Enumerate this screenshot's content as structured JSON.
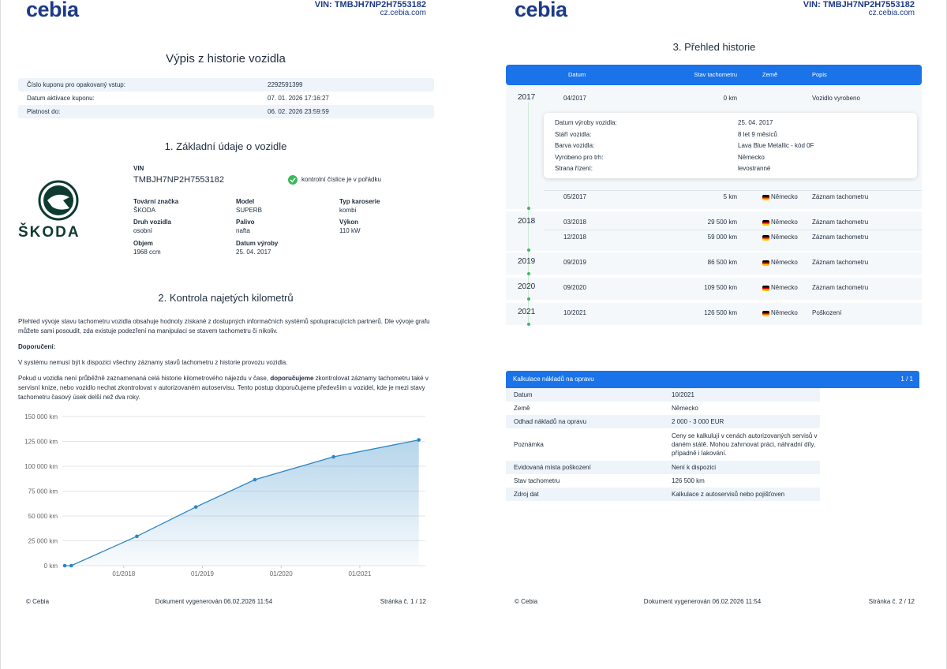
{
  "page1": {
    "logo": "cebia",
    "vin_header": "VIN: TMBJH7NP2H7553182",
    "site": "cz.cebia.com",
    "title": "Výpis z historie vozidla",
    "coupon": [
      {
        "label": "Číslo kuponu pro opakovaný vstup:",
        "value": "2292591399"
      },
      {
        "label": "Datum aktivace kuponu:",
        "value": "07. 01. 2026 17:16:27"
      },
      {
        "label": "Platnost do:",
        "value": "06. 02. 2026 23:59:59"
      }
    ],
    "section1_title": "1. Základní údaje o vozidle",
    "brand_logo": "ŠKODA",
    "vin_label": "VIN",
    "vin": "TMBJH7NP2H7553182",
    "vin_check": "kontrolní číslice je v pořádku",
    "specs": [
      {
        "label": "Tovární značka",
        "value": "ŠKODA"
      },
      {
        "label": "Model",
        "value": "SUPERB"
      },
      {
        "label": "Typ karoserie",
        "value": "kombi"
      },
      {
        "label": "Druh vozidla",
        "value": "osobní"
      },
      {
        "label": "Palivo",
        "value": "nafta"
      },
      {
        "label": "Výkon",
        "value": "110 kW"
      },
      {
        "label": "Objem",
        "value": "1968 ccm"
      },
      {
        "label": "Datum výroby",
        "value": "25. 04. 2017"
      }
    ],
    "section2_title": "2. Kontrola najetých kilometrů",
    "paragraph1": "Přehled vývoje stavu tachometru vozidla obsahuje hodnoty získané z dostupných informačních systémů spolupracujících partnerů. Dle vývoje grafu můžete sami posoudit, zda existuje podezření na manipulaci se stavem tachometru či nikoliv.",
    "recommendation_heading": "Doporučení:",
    "paragraph2": "V systému nemusí být k dispozici všechny záznamy stavů tachometru z historie provozu vozidla.",
    "paragraph3": [
      "Pokud u vozidla není průběžně zaznamenaná celá historie kilometrového nájezdu v čase, ",
      "doporučujeme",
      " zkontrolovat záznamy tachometru také v servisní knize, nebo vozidlo nechat zkontrolovat v autorizovaném autoservisu. Tento postup doporučujeme především u vozidel, kde je mezi stavy tachometru časový úsek delší než dva roky."
    ],
    "footer": {
      "left": "© Cebia",
      "center": "Dokument vygenerován 06.02.2026 11:54",
      "right": "Stránka č. 1 / 12"
    }
  },
  "chart_data": {
    "type": "line",
    "x": [
      "04/2017",
      "05/2017",
      "03/2018",
      "12/2018",
      "09/2019",
      "09/2020",
      "10/2021"
    ],
    "values": [
      0,
      5,
      29500,
      59000,
      86500,
      109500,
      126500
    ],
    "color": "#2b86c5",
    "grid": true,
    "xlim": [
      "04/2017",
      "11/2021"
    ],
    "xticks": [
      "01/2018",
      "01/2019",
      "01/2020",
      "01/2021"
    ],
    "ylim": [
      0,
      150000
    ],
    "yticks": [
      {
        "value": 0,
        "label": "0 km"
      },
      {
        "value": 25000,
        "label": "25 000 km"
      },
      {
        "value": 50000,
        "label": "50 000 km"
      },
      {
        "value": 75000,
        "label": "75 000 km"
      },
      {
        "value": 100000,
        "label": "100 000 km"
      },
      {
        "value": 125000,
        "label": "125 000 km"
      },
      {
        "value": 150000,
        "label": "150 000 km"
      }
    ]
  },
  "page2": {
    "logo": "cebia",
    "vin_header": "VIN: TMBJH7NP2H7553182",
    "site": "cz.cebia.com",
    "title": "3. Přehled historie",
    "table_header": [
      "Datum",
      "Stav tachometru",
      "Země",
      "Popis"
    ],
    "groups": [
      {
        "year": "2017",
        "rows": [
          {
            "date": "04/2017",
            "mileage": "0 km",
            "description": "Vozidlo vyrobeno"
          },
          {
            "date": "05/2017",
            "mileage": "5 km",
            "country": "Německo",
            "description": "Záznam tachometru"
          }
        ],
        "details": [
          {
            "label": "Datum výroby vozidla:",
            "value": "25. 04. 2017"
          },
          {
            "label": "Stáří vozidla:",
            "value": "8 let 9 měsíců"
          },
          {
            "label": "Barva vozidla:",
            "value": "Lava Blue Metallic - kód 0F"
          },
          {
            "label": "Vyrobeno pro trh:",
            "value": "Německo"
          },
          {
            "label": "Strana řízení:",
            "value": "levostranné"
          }
        ]
      },
      {
        "year": "2018",
        "rows": [
          {
            "date": "03/2018",
            "mileage": "29 500 km",
            "country": "Německo",
            "description": "Záznam tachometru"
          },
          {
            "date": "12/2018",
            "mileage": "59 000 km",
            "country": "Německo",
            "description": "Záznam tachometru"
          }
        ]
      },
      {
        "year": "2019",
        "rows": [
          {
            "date": "09/2019",
            "mileage": "86 500 km",
            "country": "Německo",
            "description": "Záznam tachometru"
          }
        ]
      },
      {
        "year": "2020",
        "rows": [
          {
            "date": "09/2020",
            "mileage": "109 500 km",
            "country": "Německo",
            "description": "Záznam tachometru"
          }
        ]
      },
      {
        "year": "2021",
        "rows": [
          {
            "date": "10/2021",
            "mileage": "126 500 km",
            "country": "Německo",
            "description": "Poškození"
          }
        ]
      }
    ],
    "cost": {
      "title": "Kalkulace nákladů na opravu",
      "pager": "1 / 1",
      "rows": [
        {
          "label": "Datum",
          "value": "10/2021"
        },
        {
          "label": "Země",
          "value": "Německo"
        },
        {
          "label": "Odhad nákladů na opravu",
          "value": "2 000 - 3 000 EUR"
        },
        {
          "label": "Poznámka",
          "value": "Ceny se kalkulují v cenách autorizovaných servisů v daném státě. Mohou zahrnovat práci, náhradní díly, případně i lakování."
        },
        {
          "label": "Evidovaná místa poškození",
          "value": "Není k dispozici"
        },
        {
          "label": "Stav tachometru",
          "value": "126 500 km"
        },
        {
          "label": "Zdroj dat",
          "value": "Kalkulace z autoservisů nebo pojišťoven"
        }
      ]
    },
    "footer": {
      "left": "© Cebia",
      "center": "Dokument vygenerován 06.02.2026 11:54",
      "right": "Stránka č. 2 / 12"
    }
  }
}
